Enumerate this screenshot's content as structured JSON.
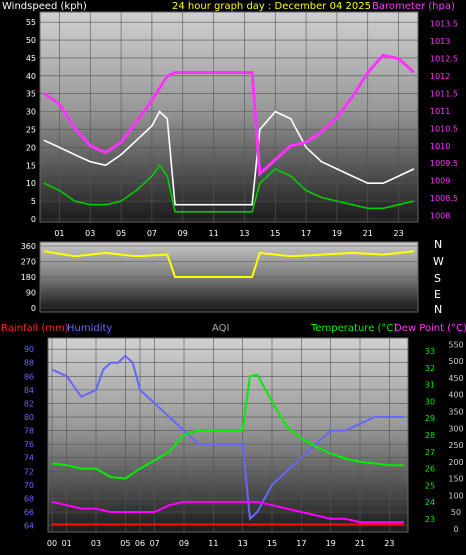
{
  "colors": {
    "background": "#000000",
    "wind_speed": "#ffffff",
    "wind_gust": "#00cc00",
    "barometer": "#ff33ff",
    "direction": "#ffff00",
    "rainfall": "#ff0000",
    "humidity": "#6666ff",
    "temperature": "#00ee00",
    "dew_point": "#ff00ff",
    "aqi": "#999999"
  },
  "header": {
    "windspeed_label": "Windspeed (kph)",
    "title": "24 hour graph day : December 04 2025",
    "barometer_label": "Barometer (hpa)"
  },
  "compass": [
    "N",
    "W",
    "S",
    "E",
    "N"
  ],
  "legend2": {
    "rainfall": "Rainfall (mm)",
    "humidity": "Humidity",
    "aqi": "AQI",
    "temperature": "Temperature (°C)",
    "dew_point": "Dew Point (°C)"
  },
  "chart_data": [
    {
      "type": "line",
      "title": "24 hour graph day : December 04 2025",
      "x_ticks": [
        "01",
        "03",
        "05",
        "07",
        "09",
        "11",
        "13",
        "15",
        "17",
        "19",
        "21",
        "23"
      ],
      "y_left_label": "Windspeed (kph)",
      "y_left_ticks": [
        0,
        5,
        10,
        15,
        20,
        25,
        30,
        35,
        40,
        45,
        50,
        55
      ],
      "y_right_label": "Barometer (hpa)",
      "y_right_ticks": [
        1008,
        1008.5,
        1009,
        1009.5,
        1010,
        1010.5,
        1011,
        1011.5,
        1012,
        1012.5,
        1013,
        1013.5
      ],
      "grid": true,
      "series": [
        {
          "name": "Windspeed (kph)",
          "axis": "left",
          "x": [
            0,
            1,
            2,
            3,
            4,
            5,
            6,
            7,
            7.5,
            8,
            8.5,
            13.5,
            14,
            15,
            16,
            17,
            18,
            19,
            20,
            21,
            22,
            23,
            24
          ],
          "y": [
            22,
            20,
            18,
            16,
            15,
            18,
            22,
            26,
            30,
            28,
            4,
            4,
            25,
            30,
            28,
            20,
            16,
            14,
            12,
            10,
            10,
            12,
            14
          ]
        },
        {
          "name": "Wind gust",
          "axis": "left",
          "x": [
            0,
            1,
            2,
            3,
            4,
            5,
            6,
            7,
            7.5,
            8,
            8.5,
            13.5,
            14,
            15,
            16,
            17,
            18,
            19,
            20,
            21,
            22,
            23,
            24
          ],
          "y": [
            10,
            8,
            5,
            4,
            4,
            5,
            8,
            12,
            15,
            12,
            2,
            2,
            10,
            14,
            12,
            8,
            6,
            5,
            4,
            3,
            3,
            4,
            5
          ]
        },
        {
          "name": "Barometer (hpa)",
          "axis": "right",
          "x": [
            0,
            1,
            2,
            3,
            4,
            5,
            6,
            7,
            8,
            8.5,
            13.5,
            14,
            15,
            16,
            17,
            18,
            19,
            20,
            21,
            22,
            23,
            24
          ],
          "y": [
            1011.5,
            1011.2,
            1010.5,
            1010,
            1009.8,
            1010.1,
            1010.7,
            1011.3,
            1012,
            1012.1,
            1012.1,
            1009.2,
            1009.6,
            1010,
            1010.1,
            1010.4,
            1010.8,
            1011.4,
            1012.1,
            1012.6,
            1012.5,
            1012.1
          ]
        }
      ]
    },
    {
      "type": "line",
      "y_ticks": [
        0,
        90,
        180,
        270,
        360
      ],
      "compass": [
        "N",
        "W",
        "S",
        "E",
        "N"
      ],
      "series": [
        {
          "name": "Wind direction",
          "x": [
            0,
            2,
            4,
            6,
            8,
            8.5,
            13.5,
            14,
            16,
            18,
            20,
            22,
            24
          ],
          "y": [
            330,
            300,
            320,
            300,
            310,
            180,
            180,
            320,
            300,
            310,
            320,
            310,
            330
          ]
        }
      ]
    },
    {
      "type": "line",
      "x_ticks": [
        "00",
        "01",
        "03",
        "05",
        "06",
        "07",
        "09",
        "11",
        "13",
        "15",
        "17",
        "19",
        "21",
        "23"
      ],
      "y_left_ticks": [
        64,
        66,
        68,
        70,
        72,
        74,
        76,
        78,
        80,
        82,
        84,
        86,
        88,
        90
      ],
      "y_temp_ticks": [
        23,
        24,
        25,
        26,
        27,
        28,
        29,
        30,
        31,
        32,
        33
      ],
      "y_aqi_ticks": [
        0,
        50,
        100,
        150,
        200,
        250,
        300,
        350,
        400,
        450,
        500,
        550
      ],
      "series": [
        {
          "name": "Humidity",
          "axis": "left",
          "x": [
            0,
            1,
            2,
            3,
            3.5,
            4,
            4.5,
            5,
            5.5,
            6,
            7,
            8,
            9,
            10,
            11,
            12,
            13,
            13.5,
            14,
            15,
            16,
            17,
            18,
            19,
            20,
            21,
            22,
            23,
            24
          ],
          "y": [
            87,
            86,
            83,
            84,
            87,
            88,
            88,
            89,
            88,
            84,
            82,
            80,
            78,
            76,
            76,
            76,
            76,
            65,
            66,
            70,
            72,
            74,
            76,
            78,
            78,
            79,
            80,
            80,
            80
          ]
        },
        {
          "name": "Temperature (°C)",
          "axis": "temp",
          "x": [
            0,
            1,
            2,
            3,
            4,
            5,
            6,
            7,
            8,
            9,
            10,
            11,
            12,
            13,
            13.5,
            14,
            15,
            16,
            17,
            18,
            19,
            20,
            21,
            22,
            23,
            24
          ],
          "y": [
            26.3,
            26.2,
            26.0,
            26.0,
            25.5,
            25.4,
            26.0,
            26.5,
            27.0,
            28.0,
            28.3,
            28.3,
            28.3,
            28.3,
            31.5,
            31.6,
            30.0,
            28.5,
            27.8,
            27.3,
            26.9,
            26.6,
            26.4,
            26.3,
            26.2,
            26.2
          ]
        },
        {
          "name": "Dew Point (°C)",
          "axis": "left",
          "x": [
            0,
            1,
            2,
            3,
            4,
            5,
            6,
            7,
            8,
            9,
            10,
            11,
            12,
            13,
            14,
            15,
            16,
            17,
            18,
            19,
            20,
            21,
            22,
            23,
            24
          ],
          "y": [
            67.5,
            67,
            66.5,
            66.5,
            66,
            66,
            66,
            66,
            67,
            67.5,
            67.5,
            67.5,
            67.5,
            67.5,
            67.5,
            67,
            66.5,
            66,
            65.5,
            65,
            65,
            64.5,
            64.5,
            64.5,
            64.5
          ]
        },
        {
          "name": "Rainfall (mm)",
          "axis": "left",
          "x": [
            0,
            24
          ],
          "y": [
            64.2,
            64.2
          ]
        }
      ]
    }
  ]
}
